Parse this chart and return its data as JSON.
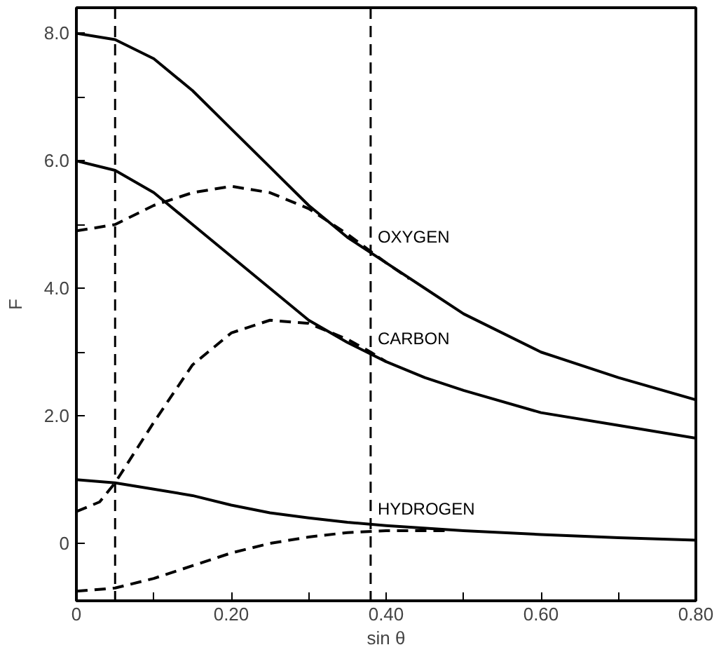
{
  "chart_data": {
    "type": "line",
    "xlabel": "sin θ",
    "ylabel": "F",
    "xlim": [
      0,
      0.8
    ],
    "ylim": [
      -0.9,
      8.4
    ],
    "xticks": [
      0,
      {
        "value": 0.1,
        "label": null
      },
      {
        "value": 0.2,
        "label": "0.20"
      },
      {
        "value": 0.3,
        "label": null
      },
      {
        "value": 0.4,
        "label": "0.40"
      },
      {
        "value": 0.5,
        "label": null
      },
      {
        "value": 0.6,
        "label": "0.60"
      },
      {
        "value": 0.7,
        "label": null
      },
      {
        "value": 0.8,
        "label": "0.80"
      }
    ],
    "yticks": [
      0,
      {
        "value": 1,
        "label": null
      },
      {
        "value": 2,
        "label": "2.0"
      },
      {
        "value": 3,
        "label": null
      },
      {
        "value": 4,
        "label": "4.0"
      },
      {
        "value": 5,
        "label": null
      },
      {
        "value": 6,
        "label": "6.0"
      },
      {
        "value": 7,
        "label": null
      },
      {
        "value": 8,
        "label": "8.0"
      }
    ],
    "grid": false,
    "marker": "none",
    "series": [
      {
        "name": "OXYGEN",
        "color": "#000000",
        "line_style": "solid",
        "x": [
          0,
          0.05,
          0.1,
          0.15,
          0.2,
          0.25,
          0.3,
          0.35,
          0.4,
          0.45,
          0.5,
          0.6,
          0.7,
          0.8
        ],
        "values": [
          8.0,
          7.9,
          7.6,
          7.1,
          6.5,
          5.9,
          5.3,
          4.8,
          4.4,
          4.0,
          3.6,
          3.0,
          2.6,
          2.25
        ]
      },
      {
        "color": "#000000",
        "line_style": "dashed",
        "x": [
          0,
          0.05,
          0.1,
          0.15,
          0.2,
          0.25,
          0.3,
          0.35,
          0.4,
          0.43
        ],
        "values": [
          4.9,
          5.0,
          5.3,
          5.5,
          5.6,
          5.5,
          5.25,
          4.85,
          4.4,
          4.15
        ]
      },
      {
        "name": "CARBON",
        "color": "#000000",
        "line_style": "solid",
        "x": [
          0,
          0.05,
          0.1,
          0.15,
          0.2,
          0.25,
          0.3,
          0.35,
          0.4,
          0.45,
          0.5,
          0.6,
          0.7,
          0.8
        ],
        "values": [
          6.0,
          5.85,
          5.5,
          5.0,
          4.5,
          4.0,
          3.5,
          3.15,
          2.85,
          2.6,
          2.4,
          2.05,
          1.85,
          1.65
        ]
      },
      {
        "color": "#000000",
        "line_style": "dashed",
        "x": [
          0,
          0.03,
          0.05,
          0.1,
          0.15,
          0.2,
          0.25,
          0.3,
          0.35,
          0.38,
          0.4
        ],
        "values": [
          0.5,
          0.65,
          0.95,
          1.9,
          2.8,
          3.3,
          3.5,
          3.45,
          3.2,
          3.0,
          2.85
        ]
      },
      {
        "name": "HYDROGEN",
        "color": "#000000",
        "line_style": "solid",
        "x": [
          0,
          0.05,
          0.1,
          0.15,
          0.2,
          0.25,
          0.3,
          0.35,
          0.4,
          0.5,
          0.6,
          0.7,
          0.8
        ],
        "values": [
          1.0,
          0.95,
          0.85,
          0.75,
          0.6,
          0.48,
          0.4,
          0.33,
          0.28,
          0.2,
          0.14,
          0.09,
          0.05
        ]
      },
      {
        "color": "#000000",
        "line_style": "dashed",
        "x": [
          0,
          0.05,
          0.1,
          0.15,
          0.2,
          0.25,
          0.3,
          0.35,
          0.4,
          0.45,
          0.48
        ],
        "values": [
          -0.75,
          -0.7,
          -0.55,
          -0.35,
          -0.15,
          0.0,
          0.1,
          0.17,
          0.2,
          0.2,
          0.2
        ]
      }
    ],
    "ref_lines": [
      {
        "axis": "x",
        "value": 0.05,
        "color": "#000000",
        "line_style": "dashed"
      },
      {
        "axis": "x",
        "value": 0.38,
        "color": "#000000",
        "line_style": "dashed"
      }
    ]
  }
}
